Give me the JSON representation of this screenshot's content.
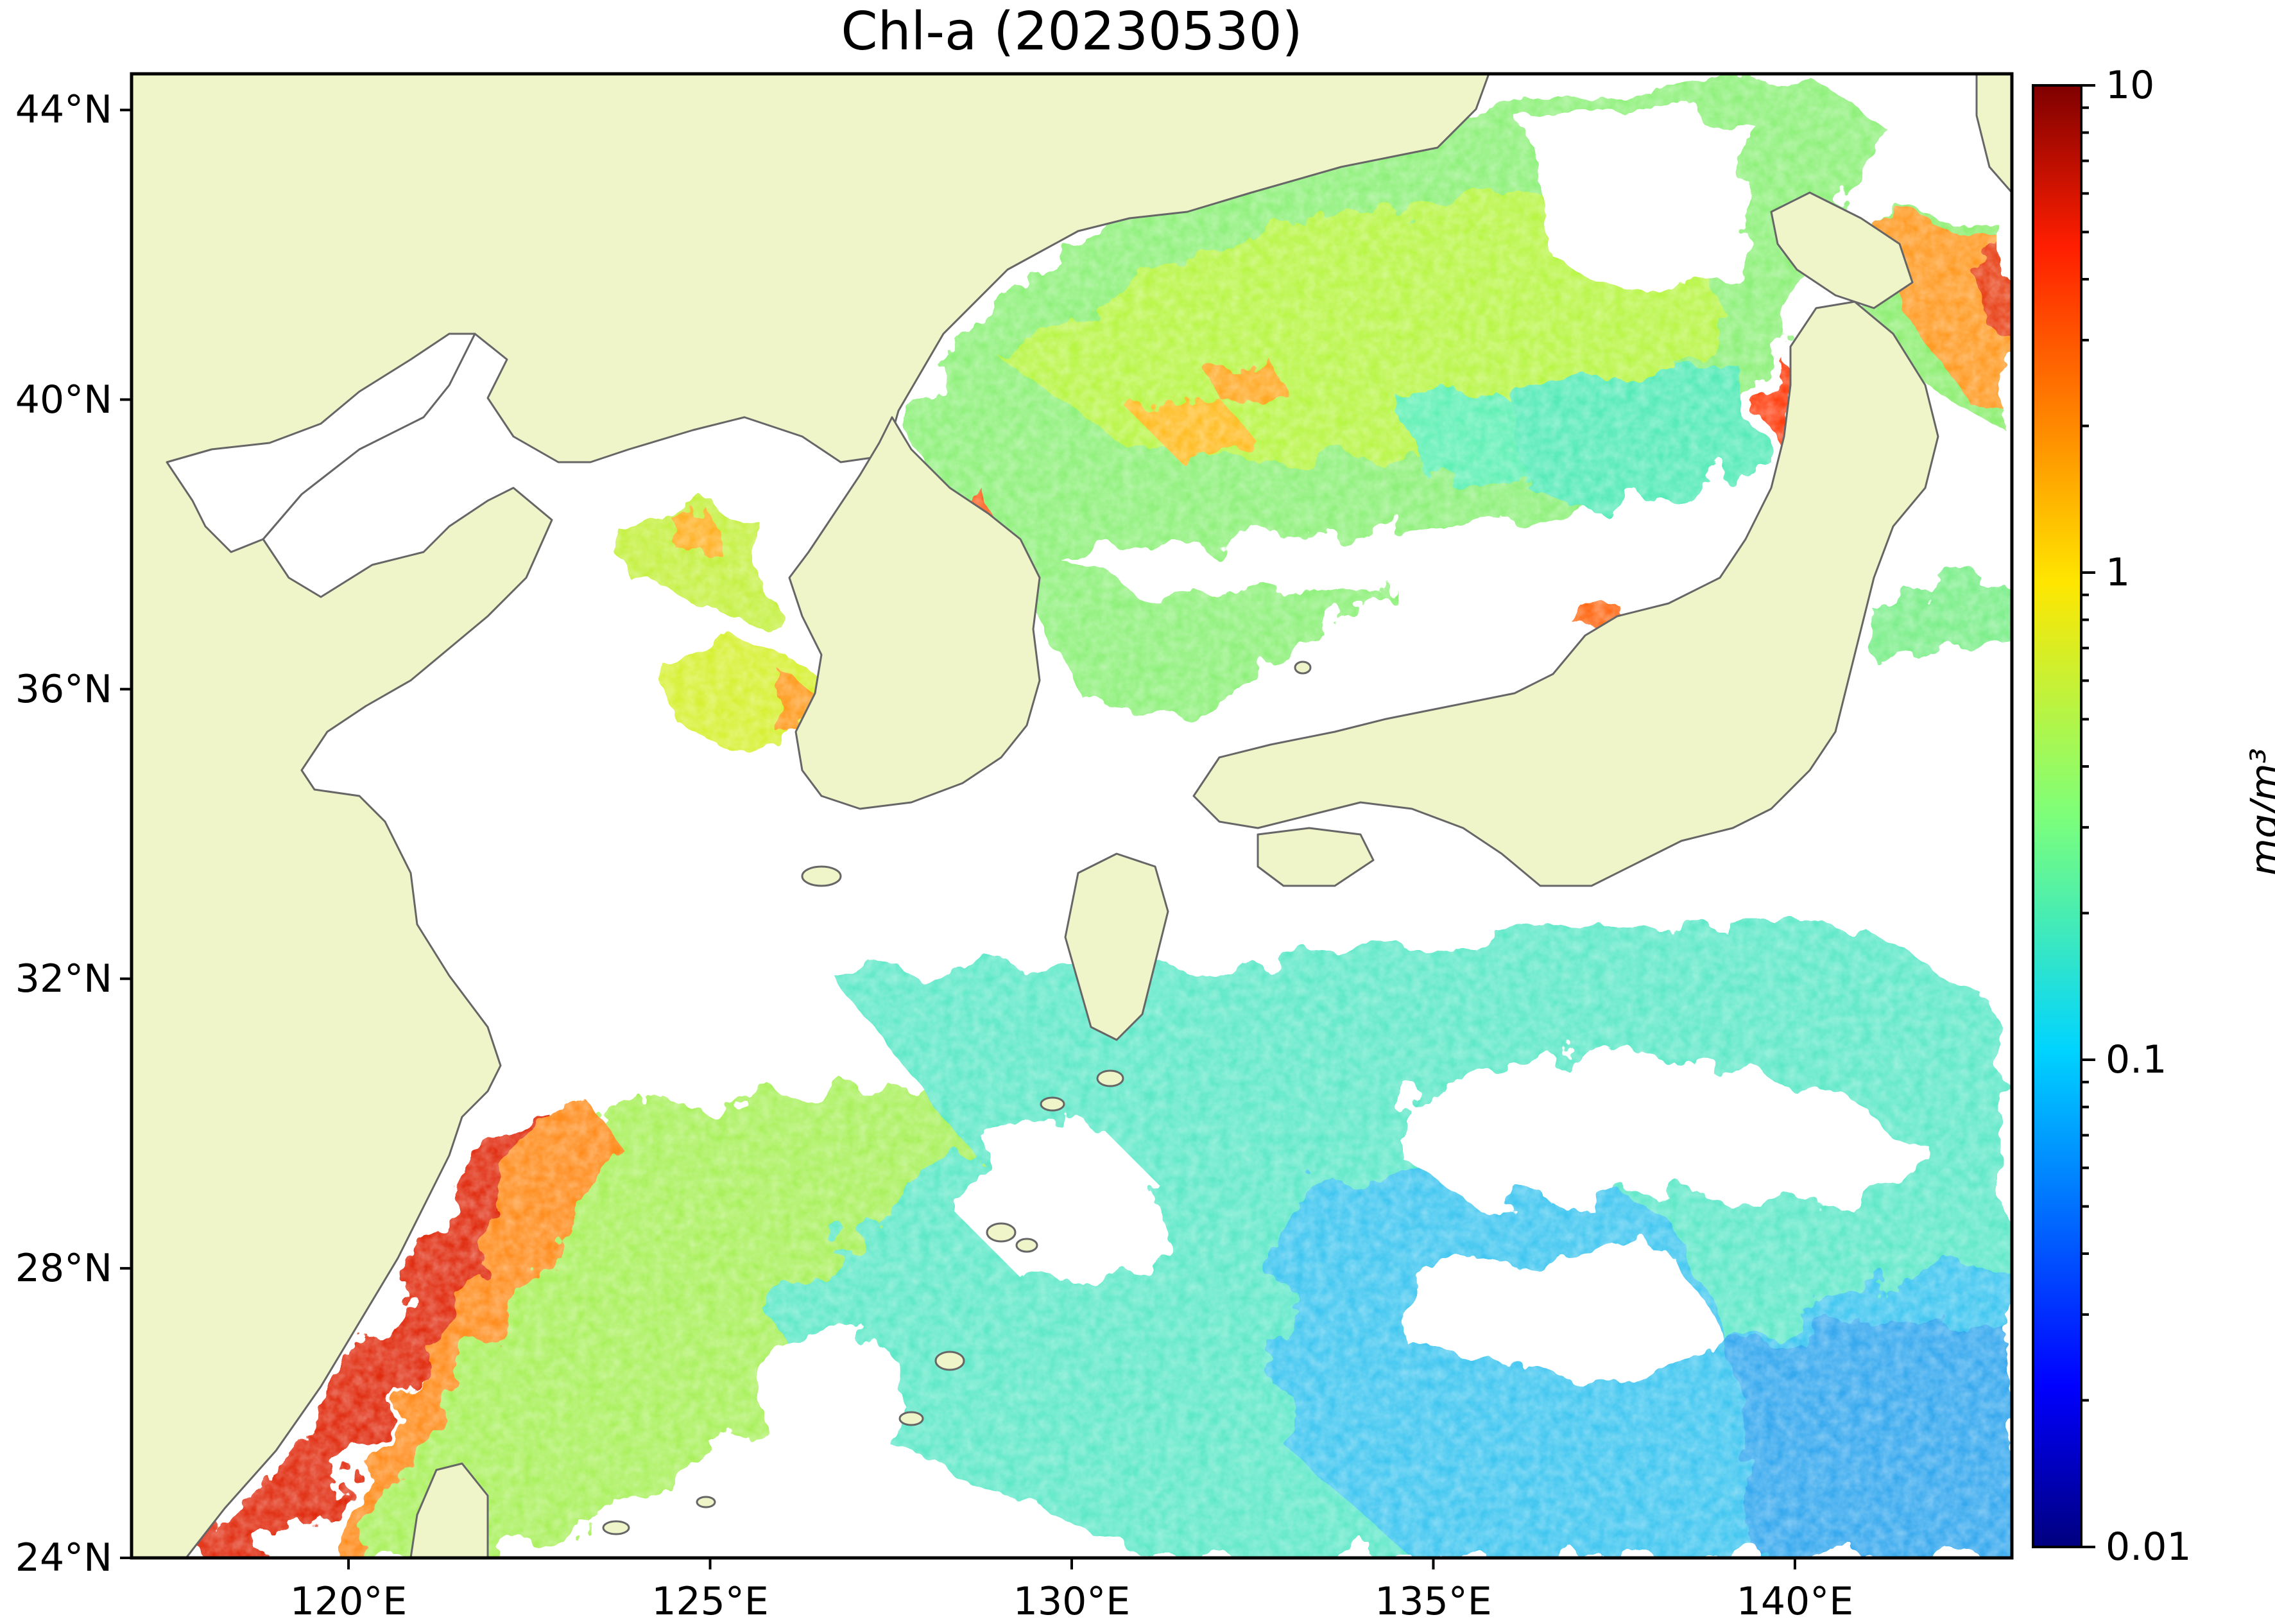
{
  "title": "Chl-a (20230530)",
  "map": {
    "lon_range": [
      117,
      143
    ],
    "lat_range": [
      24,
      44.5
    ],
    "lon_ticks": [
      {
        "value": 120,
        "label": "120°E"
      },
      {
        "value": 125,
        "label": "125°E"
      },
      {
        "value": 130,
        "label": "130°E"
      },
      {
        "value": 135,
        "label": "135°E"
      },
      {
        "value": 140,
        "label": "140°E"
      }
    ],
    "lat_ticks": [
      {
        "value": 24,
        "label": "24°N"
      },
      {
        "value": 28,
        "label": "28°N"
      },
      {
        "value": 32,
        "label": "32°N"
      },
      {
        "value": 36,
        "label": "36°N"
      },
      {
        "value": 40,
        "label": "40°N"
      },
      {
        "value": 44,
        "label": "44°N"
      }
    ],
    "land_color": "#eff4c9",
    "coast_color": "#666666",
    "no_data_color": "#ffffff"
  },
  "colorbar": {
    "scale": "log",
    "min": 0.01,
    "max": 10,
    "colormap": "jet",
    "ticks": [
      {
        "value": 10,
        "label": "10"
      },
      {
        "value": 1,
        "label": "1"
      },
      {
        "value": 0.1,
        "label": "0.1"
      },
      {
        "value": 0.01,
        "label": "0.01"
      }
    ],
    "units": "mg/m³"
  }
}
